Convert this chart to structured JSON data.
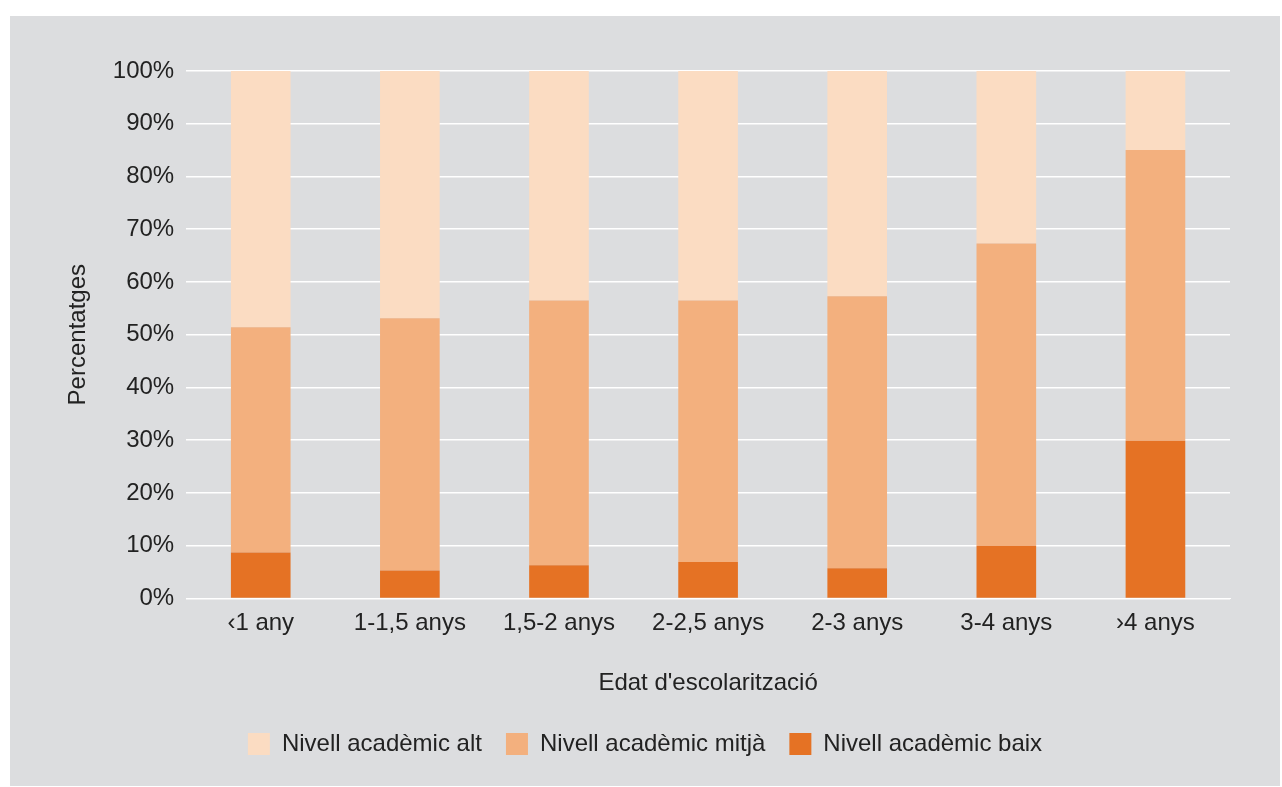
{
  "chart_data": {
    "type": "bar",
    "stacked": true,
    "xlabel": "Edat d'escolarització",
    "ylabel": "Percentatges",
    "categories": [
      "‹1 any",
      "1-1,5 anys",
      "1,5-2 anys",
      "2-2,5 anys",
      "2-3 anys",
      "3-4 anys",
      "›4 anys"
    ],
    "series": [
      {
        "name": "Nivell acadèmic baix",
        "color": "#e57224",
        "values": [
          8.7,
          5.3,
          6.3,
          6.9,
          5.7,
          10.0,
          29.9
        ]
      },
      {
        "name": "Nivell acadèmic mitjà",
        "color": "#f3b07e",
        "values": [
          42.7,
          47.8,
          50.2,
          49.6,
          51.6,
          57.3,
          55.1
        ]
      },
      {
        "name": "Nivell acadèmic alt",
        "color": "#fbdcc2",
        "values": [
          48.6,
          46.9,
          43.5,
          43.5,
          42.7,
          32.7,
          15.0
        ]
      }
    ],
    "ylim": [
      0,
      100
    ],
    "yticks": [
      {
        "value": 0,
        "label": "0%"
      },
      {
        "value": 10,
        "label": "10%"
      },
      {
        "value": 20,
        "label": "20%"
      },
      {
        "value": 30,
        "label": "30%"
      },
      {
        "value": 40,
        "label": "40%"
      },
      {
        "value": 50,
        "label": "50%"
      },
      {
        "value": 60,
        "label": "60%"
      },
      {
        "value": 70,
        "label": "70%"
      },
      {
        "value": 80,
        "label": "80%"
      },
      {
        "value": 90,
        "label": "90%"
      },
      {
        "value": 100,
        "label": "100%"
      }
    ],
    "grid": "y",
    "legend": "bottom"
  }
}
